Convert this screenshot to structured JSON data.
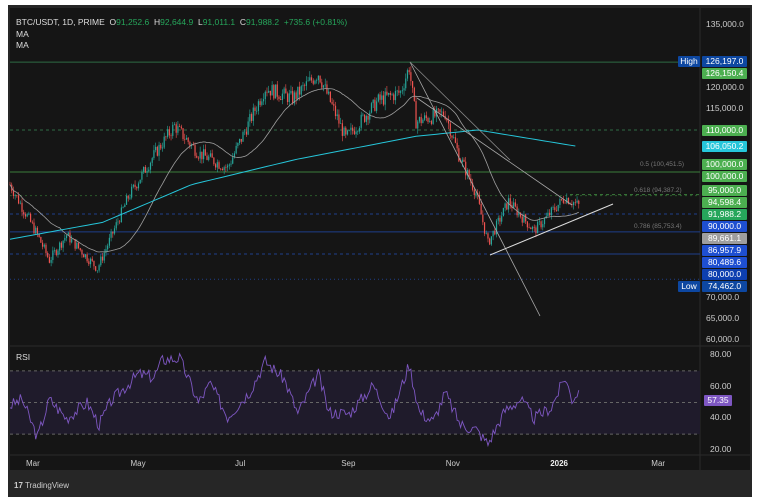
{
  "header": {
    "symbol": "BTC/USDT, 1D, PRIME",
    "o_label": "O",
    "o": "91,252.6",
    "h_label": "H",
    "h": "92,644.9",
    "l_label": "L",
    "l": "91,011.1",
    "c_label": "C",
    "c": "91,988.2",
    "change": "+735.6 (+0.81%)",
    "ma1": "MA",
    "ma2": "MA"
  },
  "rsi_label": "RSI",
  "footer": {
    "logo": "17",
    "brand": "TradingView"
  },
  "colors": {
    "up": "#26a69a",
    "down": "#ef5350",
    "ma_short": "#9e9e9e",
    "ma_long": "#26c6da",
    "rsi": "#7e57c2",
    "green_label": "#4caf50",
    "blue_label": "#1e4fd1",
    "high_low": "#0d47a1"
  },
  "chart_data": [
    {
      "type": "candlestick",
      "ylim": [
        60000,
        135000
      ],
      "yticks": [
        "135,000.0",
        "120,000.0",
        "115,000.0",
        "70,000.0",
        "65,000.0",
        "60,000.0"
      ],
      "xticks": [
        "Mar",
        "May",
        "Jul",
        "Sep",
        "Nov",
        "2026",
        "Mar"
      ],
      "close_anchors": [
        [
          "2025-02-15",
          97000
        ],
        [
          "2025-03-03",
          85000
        ],
        [
          "2025-03-10",
          79000
        ],
        [
          "2025-03-20",
          85000
        ],
        [
          "2025-04-07",
          77000
        ],
        [
          "2025-04-25",
          94000
        ],
        [
          "2025-05-10",
          104000
        ],
        [
          "2025-05-22",
          111000
        ],
        [
          "2025-06-05",
          104500
        ],
        [
          "2025-06-22",
          101000
        ],
        [
          "2025-07-14",
          120000
        ],
        [
          "2025-07-30",
          117500
        ],
        [
          "2025-08-14",
          123500
        ],
        [
          "2025-08-30",
          108000
        ],
        [
          "2025-09-18",
          117000
        ],
        [
          "2025-10-01",
          119000
        ],
        [
          "2025-10-06",
          125000
        ],
        [
          "2025-10-10",
          112000
        ],
        [
          "2025-10-27",
          114000
        ],
        [
          "2025-11-04",
          104000
        ],
        [
          "2025-11-14",
          95000
        ],
        [
          "2025-11-21",
          83000
        ],
        [
          "2025-12-03",
          93000
        ],
        [
          "2025-12-18",
          86000
        ],
        [
          "2026-01-05",
          94000
        ],
        [
          "2026-01-13",
          91988.2
        ]
      ],
      "ma_long_anchors": [
        [
          "2025-02-15",
          84000
        ],
        [
          "2025-04-10",
          88000
        ],
        [
          "2025-06-01",
          97000
        ],
        [
          "2025-08-01",
          103000
        ],
        [
          "2025-10-10",
          108500
        ],
        [
          "2025-11-15",
          110000
        ],
        [
          "2026-01-13",
          106050.2
        ]
      ],
      "price_labels": [
        {
          "text": "126,197.0",
          "price": 126197,
          "color": "#0d47a1",
          "tag": "High"
        },
        {
          "text": "126,150.4",
          "price": 126150.4,
          "color": "#4caf50"
        },
        {
          "text": "110,000.0",
          "price": 110000,
          "color": "#4caf50"
        },
        {
          "text": "106,050.2",
          "price": 106050.2,
          "color": "#26c6da"
        },
        {
          "text": "100,000.0",
          "price": 101800,
          "color": "#4caf50"
        },
        {
          "text": "100,000.0",
          "price": 100000,
          "color": "#4caf50"
        },
        {
          "text": "95,000.0",
          "price": 95500,
          "color": "#4caf50"
        },
        {
          "text": "94,598.4",
          "price": 94598.4,
          "color": "#4caf50"
        },
        {
          "text": "91,988.2",
          "price": 91988.2,
          "color": "#26a65b"
        },
        {
          "text": "90,000.0",
          "price": 89300,
          "color": "#1e4fd1"
        },
        {
          "text": "89,661.1",
          "price": 86700,
          "color": "#9e9e9e"
        },
        {
          "text": "86,957.9",
          "price": 84000,
          "color": "#1e4fd1"
        },
        {
          "text": "80,489.6",
          "price": 80489.6,
          "color": "#1e4fd1"
        },
        {
          "text": "80,000.0",
          "price": 77700,
          "color": "#0d3fb0"
        },
        {
          "text": "74,462.0",
          "price": 74462,
          "color": "#0d47a1",
          "tag": "Low"
        }
      ],
      "fib_levels": [
        {
          "text": "0.5 (100,451.5)",
          "price": 100451.5
        },
        {
          "text": "0.618 (94,387.2)",
          "price": 94387.2
        },
        {
          "text": "0.786 (85,753.4)",
          "price": 85753.4
        }
      ]
    },
    {
      "type": "line",
      "name": "RSI",
      "ylim": [
        15,
        85
      ],
      "yticks": [
        "80.00",
        "60.00",
        "40.00",
        "20.00"
      ],
      "bands": [
        30,
        50,
        70
      ],
      "last": "57.35",
      "anchors": [
        [
          "2025-02-15",
          48
        ],
        [
          "2025-02-22",
          52
        ],
        [
          "2025-03-03",
          28
        ],
        [
          "2025-03-10",
          52
        ],
        [
          "2025-03-20",
          40
        ],
        [
          "2025-04-01",
          50
        ],
        [
          "2025-04-08",
          36
        ],
        [
          "2025-04-15",
          51
        ],
        [
          "2025-05-01",
          68
        ],
        [
          "2025-05-10",
          66
        ],
        [
          "2025-05-15",
          77
        ],
        [
          "2025-05-25",
          78
        ],
        [
          "2025-06-05",
          50
        ],
        [
          "2025-06-12",
          62
        ],
        [
          "2025-06-22",
          41
        ],
        [
          "2025-07-05",
          57
        ],
        [
          "2025-07-14",
          76
        ],
        [
          "2025-07-25",
          65
        ],
        [
          "2025-08-02",
          43
        ],
        [
          "2025-08-14",
          68
        ],
        [
          "2025-08-20",
          44
        ],
        [
          "2025-09-01",
          43
        ],
        [
          "2025-09-15",
          61
        ],
        [
          "2025-09-25",
          40
        ],
        [
          "2025-10-06",
          74
        ],
        [
          "2025-10-12",
          44
        ],
        [
          "2025-10-20",
          38
        ],
        [
          "2025-10-27",
          56
        ],
        [
          "2025-11-05",
          36
        ],
        [
          "2025-11-14",
          33
        ],
        [
          "2025-11-21",
          24
        ],
        [
          "2025-12-01",
          45
        ],
        [
          "2025-12-10",
          52
        ],
        [
          "2025-12-18",
          40
        ],
        [
          "2025-12-28",
          47
        ],
        [
          "2026-01-05",
          66
        ],
        [
          "2026-01-09",
          52
        ],
        [
          "2026-01-13",
          57.35
        ]
      ]
    }
  ]
}
